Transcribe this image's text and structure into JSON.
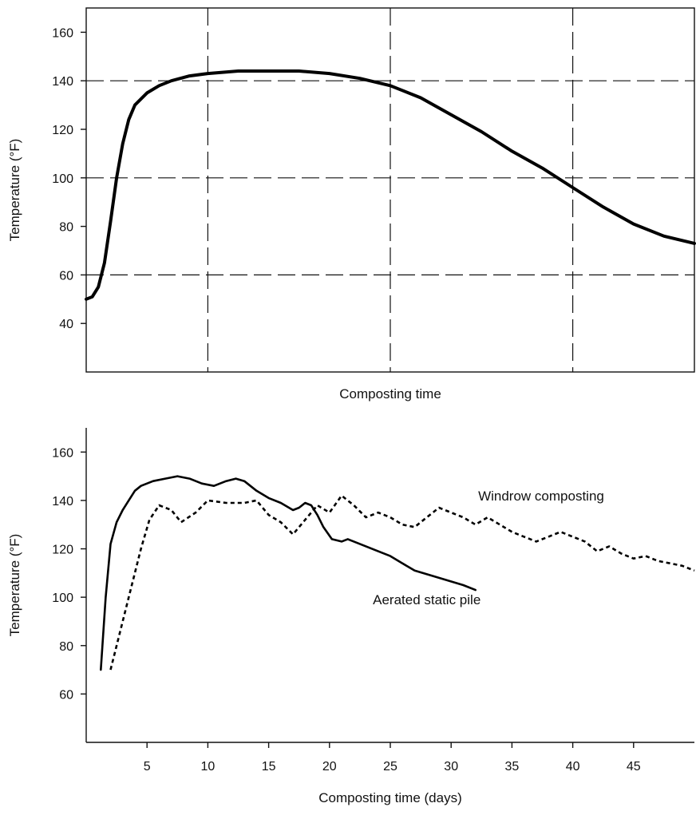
{
  "chart_data": [
    {
      "type": "line",
      "title": "",
      "xlabel": "Composting time",
      "ylabel": "Temperature (°F)",
      "xlim": [
        0,
        100
      ],
      "ylim": [
        20,
        170
      ],
      "yticks": [
        40,
        60,
        80,
        100,
        120,
        140,
        160
      ],
      "xticks": [],
      "grid": {
        "vertical_dashed_at": [
          20,
          50,
          80
        ],
        "horizontal_dashed_at": [
          60,
          100,
          140
        ]
      },
      "series": [
        {
          "style": "solid",
          "points": [
            [
              0,
              50
            ],
            [
              1,
              51
            ],
            [
              2,
              55
            ],
            [
              3,
              65
            ],
            [
              4,
              82
            ],
            [
              5,
              100
            ],
            [
              6,
              114
            ],
            [
              7,
              124
            ],
            [
              8,
              130
            ],
            [
              10,
              135
            ],
            [
              12,
              138
            ],
            [
              14,
              140
            ],
            [
              17,
              142
            ],
            [
              20,
              143
            ],
            [
              25,
              144
            ],
            [
              30,
              144
            ],
            [
              35,
              144
            ],
            [
              40,
              143
            ],
            [
              45,
              141
            ],
            [
              50,
              138
            ],
            [
              55,
              133
            ],
            [
              60,
              126
            ],
            [
              65,
              119
            ],
            [
              70,
              111
            ],
            [
              75,
              104
            ],
            [
              80,
              96
            ],
            [
              85,
              88
            ],
            [
              90,
              81
            ],
            [
              95,
              76
            ],
            [
              100,
              73
            ]
          ]
        }
      ]
    },
    {
      "type": "line",
      "title": "",
      "xlabel": "Composting time (days)",
      "ylabel": "Temperature (°F)",
      "xlim": [
        0,
        50
      ],
      "ylim": [
        40,
        170
      ],
      "xticks": [
        5,
        10,
        15,
        20,
        25,
        30,
        35,
        40,
        45
      ],
      "yticks": [
        60,
        80,
        100,
        120,
        140,
        160
      ],
      "series": [
        {
          "name": "Aerated static pile",
          "style": "solid",
          "points": [
            [
              1.2,
              70
            ],
            [
              1.6,
              100
            ],
            [
              2,
              122
            ],
            [
              2.5,
              131
            ],
            [
              3,
              136
            ],
            [
              3.5,
              140
            ],
            [
              4,
              144
            ],
            [
              4.5,
              146
            ],
            [
              5.5,
              148
            ],
            [
              6.5,
              149
            ],
            [
              7.5,
              150
            ],
            [
              8.5,
              149
            ],
            [
              9.5,
              147
            ],
            [
              10.5,
              146
            ],
            [
              11.5,
              148
            ],
            [
              12.3,
              149
            ],
            [
              13,
              148
            ],
            [
              14,
              144
            ],
            [
              15,
              141
            ],
            [
              16,
              139
            ],
            [
              17,
              136
            ],
            [
              17.5,
              137
            ],
            [
              18,
              139
            ],
            [
              18.5,
              138
            ],
            [
              19,
              134
            ],
            [
              19.5,
              129
            ],
            [
              20.2,
              124
            ],
            [
              21,
              123
            ],
            [
              21.5,
              124
            ],
            [
              22,
              123
            ],
            [
              24,
              119
            ],
            [
              25,
              117
            ],
            [
              26,
              114
            ],
            [
              27,
              111
            ],
            [
              29,
              108
            ],
            [
              31,
              105
            ],
            [
              32,
              103
            ]
          ]
        },
        {
          "name": "Windrow composting",
          "style": "dotted",
          "points": [
            [
              2,
              70
            ],
            [
              2.5,
              80
            ],
            [
              3.5,
              100
            ],
            [
              4.5,
              120
            ],
            [
              5.2,
              132
            ],
            [
              6,
              138
            ],
            [
              7,
              136
            ],
            [
              7.8,
              131
            ],
            [
              9,
              135
            ],
            [
              10,
              140
            ],
            [
              11.5,
              139
            ],
            [
              13,
              139
            ],
            [
              14,
              140
            ],
            [
              15,
              134
            ],
            [
              16,
              131
            ],
            [
              17,
              126
            ],
            [
              18,
              132
            ],
            [
              19,
              138
            ],
            [
              20,
              135
            ],
            [
              21,
              142
            ],
            [
              22,
              138
            ],
            [
              23,
              133
            ],
            [
              24,
              135
            ],
            [
              25,
              133
            ],
            [
              26,
              130
            ],
            [
              27,
              129
            ],
            [
              28,
              133
            ],
            [
              29,
              137
            ],
            [
              30,
              135
            ],
            [
              31,
              133
            ],
            [
              32,
              130
            ],
            [
              33,
              133
            ],
            [
              34,
              130
            ],
            [
              35,
              127
            ],
            [
              36,
              125
            ],
            [
              37,
              123
            ],
            [
              38,
              125
            ],
            [
              39,
              127
            ],
            [
              40,
              125
            ],
            [
              41,
              123
            ],
            [
              42,
              119
            ],
            [
              43,
              121
            ],
            [
              44,
              118
            ],
            [
              45,
              116
            ],
            [
              46,
              117
            ],
            [
              47,
              115
            ],
            [
              48,
              114
            ],
            [
              49,
              113
            ],
            [
              50,
              111
            ]
          ]
        }
      ]
    }
  ]
}
